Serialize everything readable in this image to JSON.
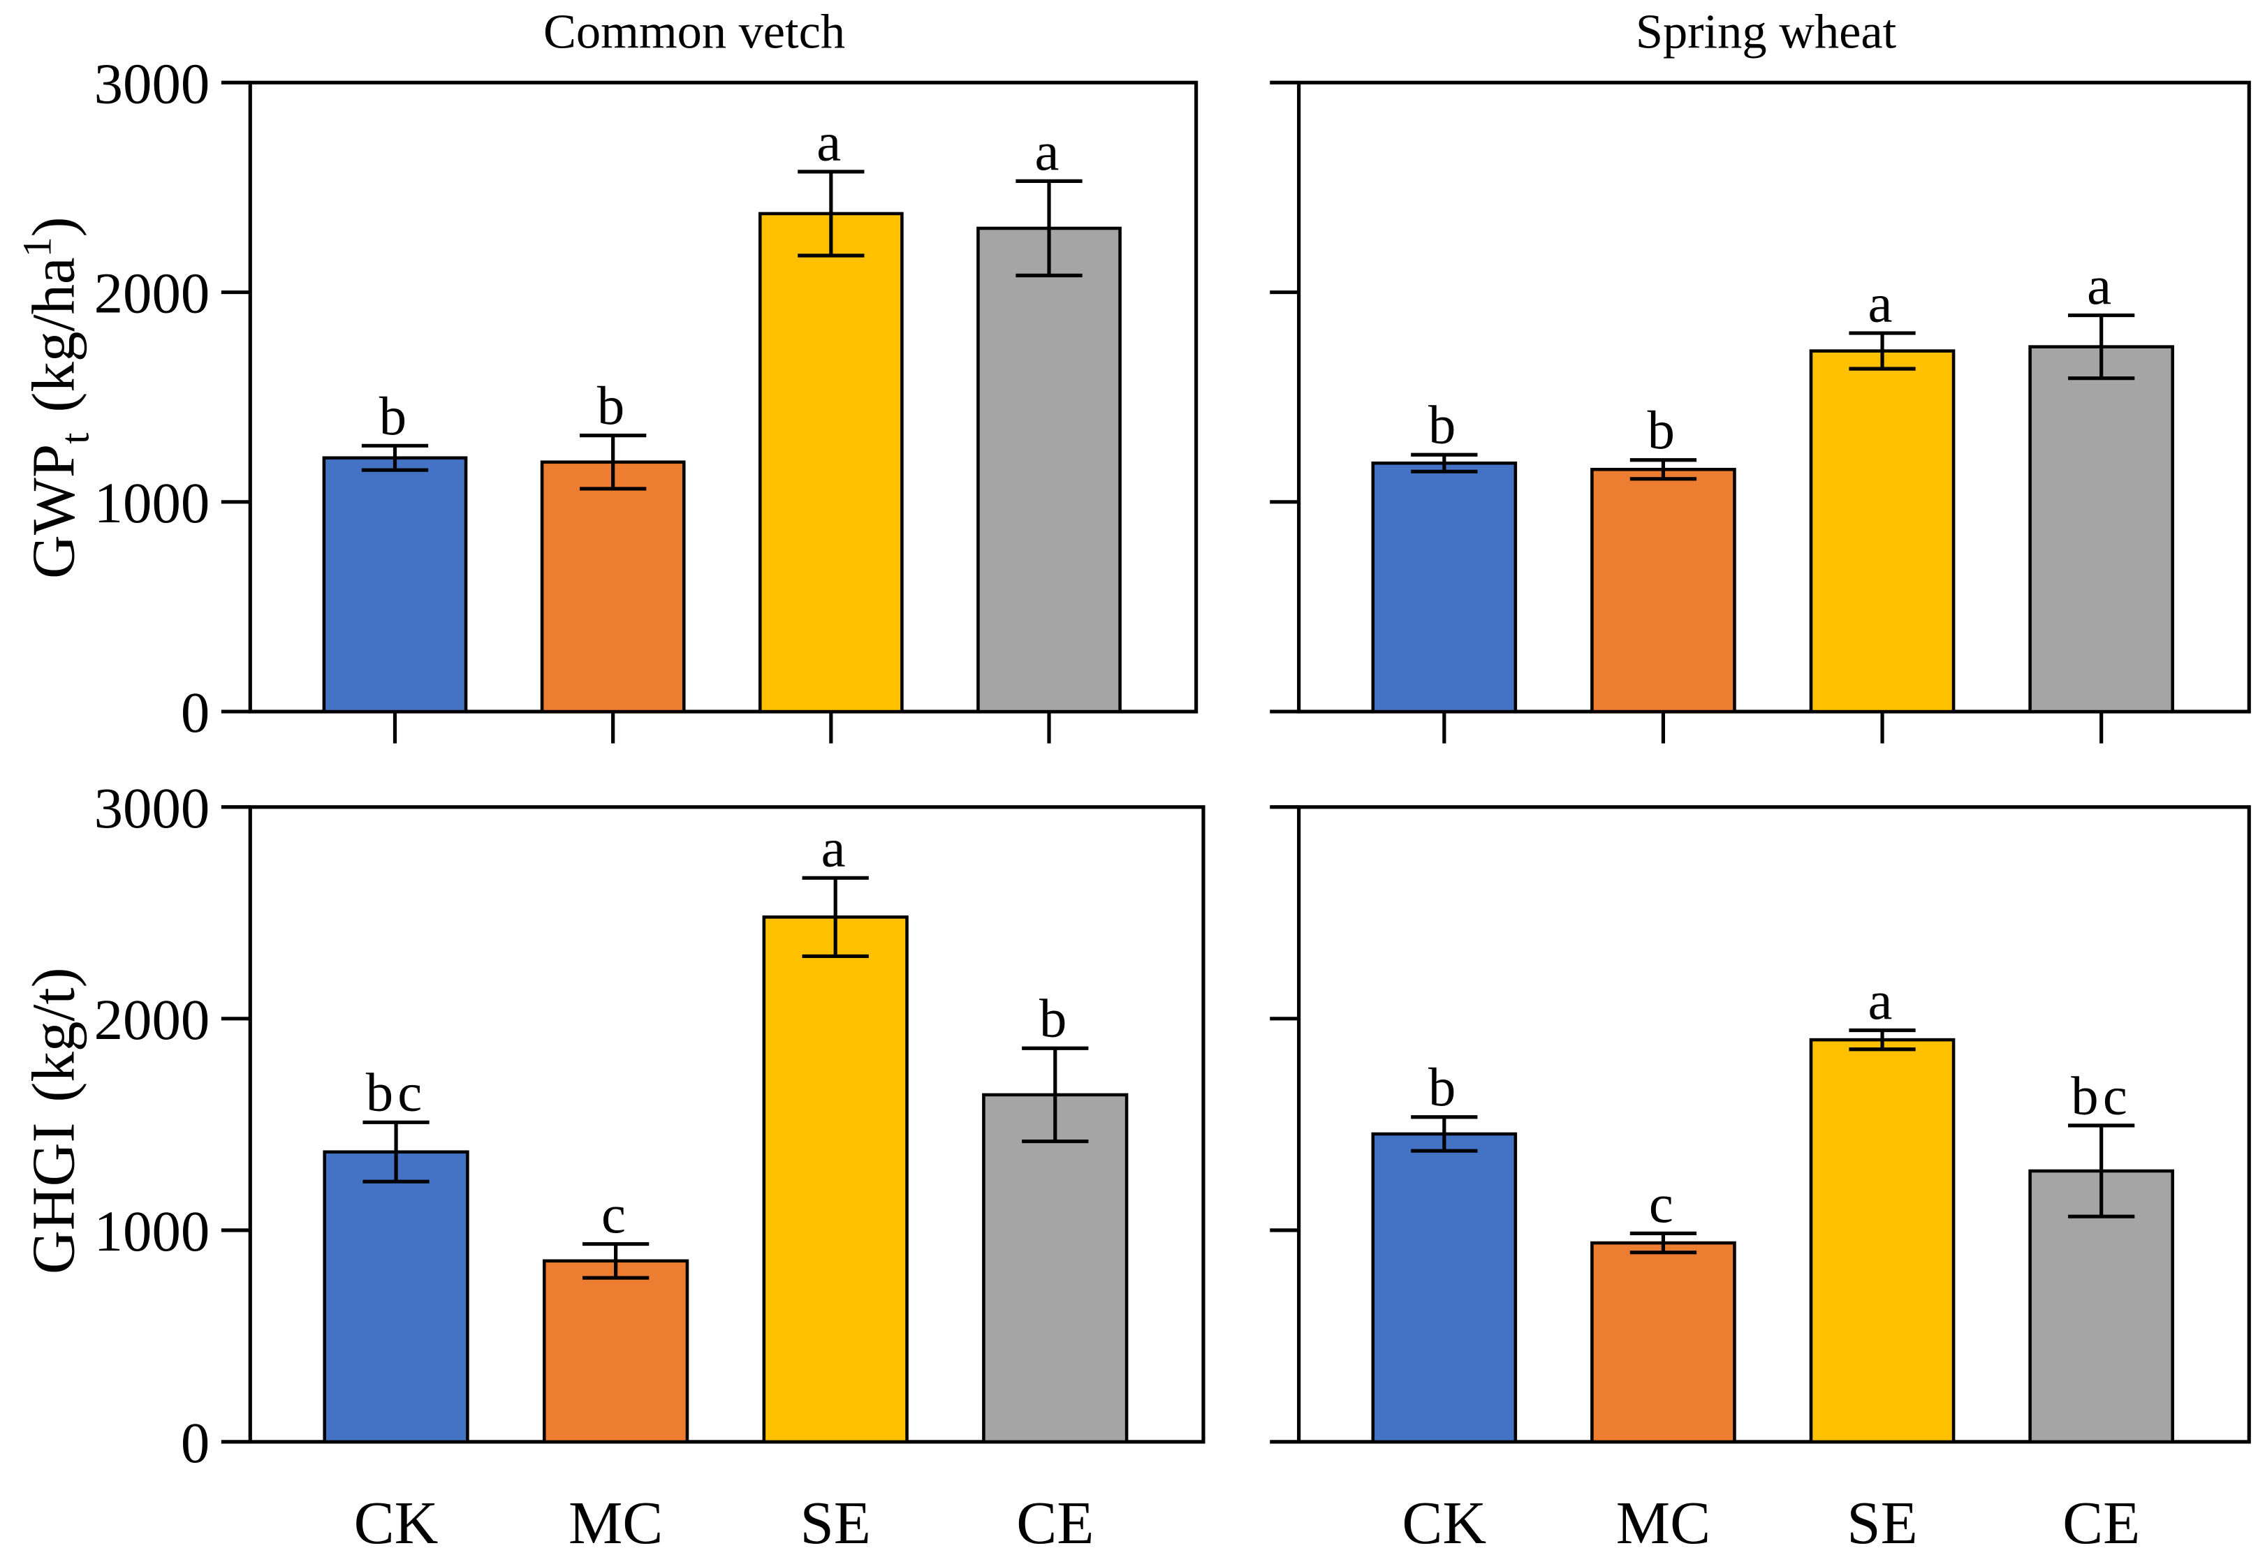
{
  "chart_data": {
    "type": "bar",
    "categories": [
      "CK",
      "MC",
      "SE",
      "CE"
    ],
    "colors": [
      "#4472C4",
      "#ED7D31",
      "#FFC000",
      "#A5A5A5"
    ],
    "ylim": [
      0,
      3000
    ],
    "yticks": [
      0,
      1000,
      2000,
      3000
    ],
    "metrics": [
      {
        "main": "GWP",
        "sub": "t",
        "unit": "(kg/ha",
        "sup": "1",
        "close": ")"
      },
      {
        "main": "GHGI",
        "unit": "(kg/t)"
      }
    ],
    "crops": [
      {
        "title": "Common vetch",
        "panels": [
          {
            "values": [
              1210,
              1190,
              2375,
              2305
            ],
            "errors": [
              58,
              127,
              200,
              225
            ],
            "letters": [
              "b",
              "b",
              "a",
              "a"
            ]
          },
          {
            "values": [
              1370,
              855,
              2480,
              1640
            ],
            "errors": [
              140,
              80,
              185,
              220
            ],
            "letters": [
              "bc",
              "c",
              "a",
              "b"
            ]
          }
        ]
      },
      {
        "title": "Spring wheat",
        "panels": [
          {
            "values": [
              1185,
              1155,
              1720,
              1740
            ],
            "errors": [
              40,
              45,
              85,
              150
            ],
            "letters": [
              "b",
              "b",
              "a",
              "a"
            ]
          },
          {
            "values": [
              1455,
              940,
              1900,
              1280
            ],
            "errors": [
              80,
              45,
              45,
              215
            ],
            "letters": [
              "b",
              "c",
              "a",
              "bc"
            ]
          }
        ]
      }
    ]
  }
}
